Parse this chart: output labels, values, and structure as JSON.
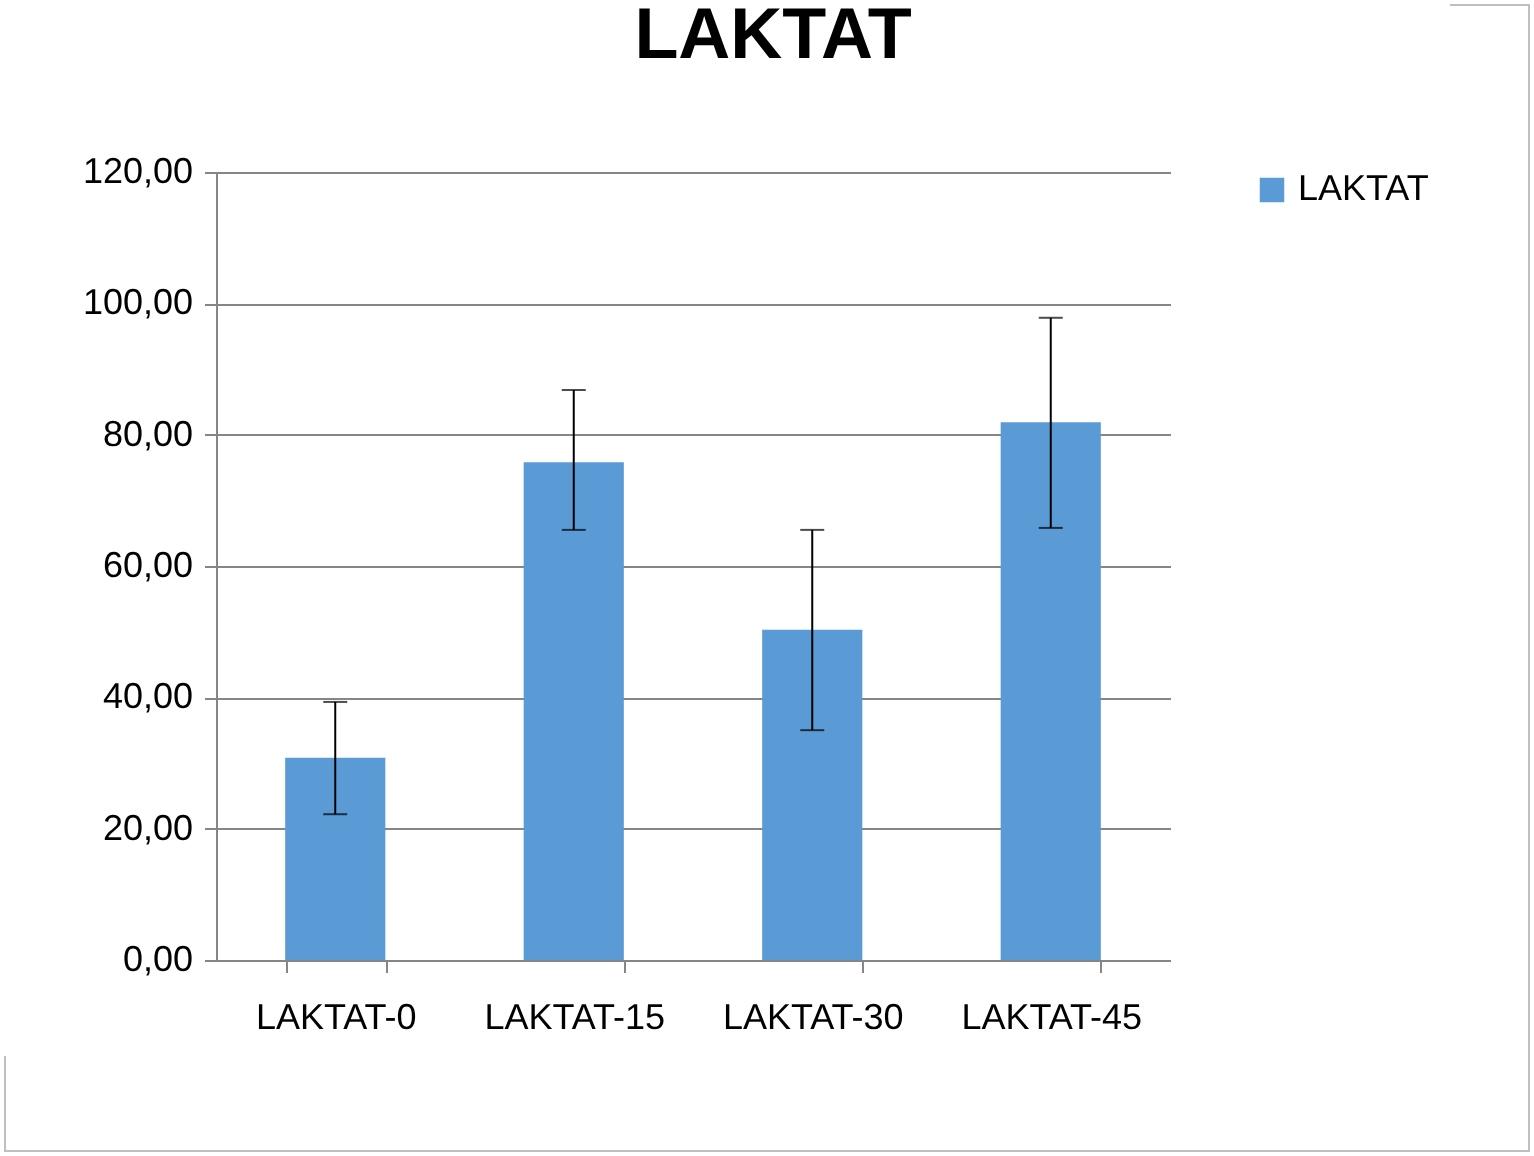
{
  "chart_data": {
    "type": "bar",
    "title": "LAKTAT",
    "categories": [
      "LAKTAT-0",
      "LAKTAT-15",
      "LAKTAT-30",
      "LAKTAT-45"
    ],
    "series": [
      {
        "name": "LAKTAT",
        "color": "#5b9bd5",
        "values": [
          30.8,
          75.8,
          50.3,
          81.9
        ],
        "errors": [
          [
            22.2,
            39.3
          ],
          [
            65.5,
            86.8
          ],
          [
            35.0,
            65.5
          ],
          [
            65.8,
            97.8
          ]
        ]
      }
    ],
    "ylim": [
      0,
      120
    ],
    "yticks": [
      {
        "value": 0,
        "label": "0,00"
      },
      {
        "value": 20,
        "label": "20,00"
      },
      {
        "value": 40,
        "label": "40,00"
      },
      {
        "value": 60,
        "label": "60,00"
      },
      {
        "value": 80,
        "label": "80,00"
      },
      {
        "value": 100,
        "label": "100,00"
      },
      {
        "value": 120,
        "label": "120,00"
      }
    ],
    "grid": "y",
    "legend": "right"
  }
}
